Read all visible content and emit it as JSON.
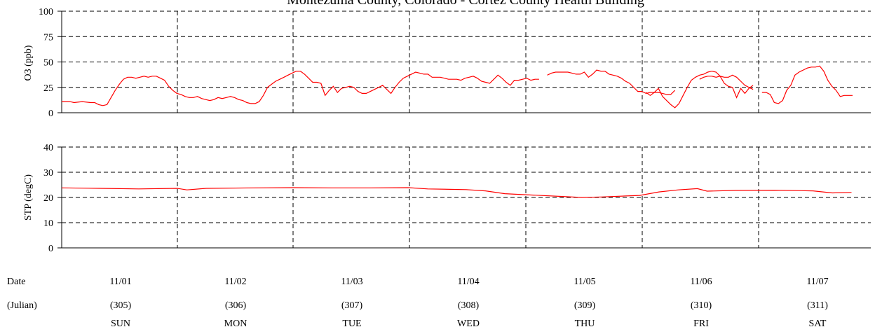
{
  "title": "Montezuma County, Colorado - Cortez County Health Building",
  "colors": {
    "series": "#ff0000",
    "axis": "#000000",
    "grid": "#000000"
  },
  "footer": {
    "row_labels": [
      "Date",
      "(Julian)"
    ],
    "days": [
      {
        "date": "11/01",
        "julian": "(305)",
        "weekday": "SUN"
      },
      {
        "date": "11/02",
        "julian": "(306)",
        "weekday": "MON"
      },
      {
        "date": "11/03",
        "julian": "(307)",
        "weekday": "TUE"
      },
      {
        "date": "11/04",
        "julian": "(308)",
        "weekday": "WED"
      },
      {
        "date": "11/05",
        "julian": "(309)",
        "weekday": "THU"
      },
      {
        "date": "11/06",
        "julian": "(310)",
        "weekday": "FRI"
      },
      {
        "date": "11/07",
        "julian": "(311)",
        "weekday": "SAT"
      }
    ]
  },
  "chart_data": [
    {
      "type": "line",
      "ylabel": "O3 (ppb)",
      "ylim": [
        0,
        100
      ],
      "yticks": [
        0,
        25,
        50,
        75,
        100
      ],
      "xlim": [
        0,
        168
      ],
      "grid": true,
      "x_unit": "hours from 11/01 00:00",
      "series": [
        {
          "segments": [
            [
              [
                0,
                11
              ],
              [
                2,
                11
              ],
              [
                3,
                10
              ],
              [
                5,
                11
              ],
              [
                7,
                10
              ],
              [
                8,
                10
              ],
              [
                9,
                8
              ],
              [
                10,
                7
              ],
              [
                11,
                8
              ],
              [
                12,
                15
              ],
              [
                13,
                22
              ],
              [
                14,
                28
              ],
              [
                15,
                33
              ],
              [
                16,
                35
              ],
              [
                17,
                35
              ],
              [
                18,
                34
              ],
              [
                19,
                35
              ],
              [
                20,
                36
              ],
              [
                21,
                35
              ],
              [
                22,
                36
              ],
              [
                23,
                36
              ],
              [
                24,
                34
              ],
              [
                25,
                32
              ],
              [
                26,
                26
              ],
              [
                27,
                22
              ],
              [
                28,
                19
              ],
              [
                29,
                18
              ],
              [
                30,
                16
              ],
              [
                31,
                15
              ],
              [
                32,
                15
              ],
              [
                33,
                16
              ],
              [
                34,
                14
              ],
              [
                35,
                13
              ],
              [
                36,
                12
              ],
              [
                37,
                13
              ],
              [
                38,
                15
              ],
              [
                39,
                14
              ],
              [
                40,
                15
              ],
              [
                41,
                16
              ],
              [
                42,
                15
              ],
              [
                43,
                13
              ],
              [
                44,
                12
              ],
              [
                45,
                10
              ],
              [
                46,
                9
              ],
              [
                47,
                9
              ],
              [
                48,
                11
              ],
              [
                49,
                17
              ],
              [
                50,
                25
              ],
              [
                51,
                28
              ],
              [
                52,
                31
              ],
              [
                53,
                33
              ],
              [
                54,
                35
              ],
              [
                55,
                37
              ],
              [
                56,
                39
              ],
              [
                57,
                41
              ],
              [
                58,
                41
              ],
              [
                59,
                38
              ],
              [
                60,
                34
              ],
              [
                61,
                30
              ],
              [
                62,
                30
              ],
              [
                63,
                29
              ],
              [
                64,
                17
              ],
              [
                65,
                22
              ],
              [
                66,
                26
              ],
              [
                67,
                20
              ],
              [
                68,
                24
              ],
              [
                69,
                25
              ],
              [
                70,
                26
              ],
              [
                71,
                25
              ],
              [
                72,
                21
              ],
              [
                73,
                19
              ],
              [
                74,
                19
              ],
              [
                75,
                21
              ],
              [
                76,
                23
              ],
              [
                77,
                25
              ],
              [
                78,
                27
              ],
              [
                79,
                23
              ],
              [
                80,
                19
              ],
              [
                81,
                25
              ],
              [
                82,
                30
              ],
              [
                83,
                34
              ],
              [
                84,
                36
              ],
              [
                85,
                38
              ],
              [
                86,
                40
              ],
              [
                87,
                39
              ],
              [
                88,
                38
              ],
              [
                89,
                38
              ],
              [
                90,
                35
              ],
              [
                91,
                35
              ],
              [
                92,
                35
              ],
              [
                93,
                34
              ],
              [
                94,
                33
              ],
              [
                95,
                33
              ],
              [
                96,
                33
              ],
              [
                97,
                32
              ],
              [
                98,
                34
              ],
              [
                99,
                35
              ],
              [
                100,
                36
              ],
              [
                101,
                34
              ],
              [
                102,
                31
              ],
              [
                103,
                30
              ],
              [
                104,
                29
              ],
              [
                105,
                33
              ],
              [
                106,
                37
              ],
              [
                107,
                34
              ],
              [
                108,
                30
              ],
              [
                109,
                27
              ],
              [
                110,
                32
              ],
              [
                111,
                32
              ],
              [
                112,
                33
              ],
              [
                113,
                34
              ],
              [
                114,
                32
              ],
              [
                115,
                33
              ],
              [
                116,
                33
              ]
            ],
            [
              [
                118,
                37
              ],
              [
                119,
                39
              ],
              [
                120,
                40
              ],
              [
                121,
                40
              ],
              [
                122,
                40
              ],
              [
                123,
                40
              ],
              [
                124,
                39
              ],
              [
                125,
                38
              ],
              [
                126,
                38
              ],
              [
                127,
                40
              ],
              [
                128,
                35
              ],
              [
                129,
                38
              ],
              [
                130,
                42
              ],
              [
                131,
                41
              ],
              [
                132,
                41
              ],
              [
                133,
                38
              ],
              [
                134,
                37
              ],
              [
                135,
                36
              ],
              [
                136,
                34
              ],
              [
                137,
                31
              ],
              [
                138,
                29
              ],
              [
                139,
                25
              ],
              [
                140,
                21
              ],
              [
                141,
                21
              ],
              [
                142,
                19
              ],
              [
                143,
                20
              ],
              [
                144,
                20
              ],
              [
                145,
                20
              ],
              [
                146,
                19
              ],
              [
                147,
                18
              ],
              [
                148,
                18
              ],
              [
                149,
                22
              ]
            ],
            [
              [
                155,
                33
              ],
              [
                156,
                35
              ],
              [
                157,
                36
              ],
              [
                158,
                36
              ],
              [
                159,
                35
              ],
              [
                160,
                36
              ],
              [
                161,
                35
              ],
              [
                162,
                35
              ],
              [
                163,
                37
              ],
              [
                164,
                35
              ],
              [
                165,
                31
              ],
              [
                166,
                27
              ],
              [
                167,
                25
              ],
              [
                168,
                23
              ]
            ]
          ],
          "note": "plot continues; full-week ozone trace drawn via scaled segments"
        }
      ]
    },
    {
      "type": "line",
      "ylabel": "STP (degC)",
      "ylim": [
        0,
        40
      ],
      "yticks": [
        0,
        10,
        20,
        30,
        40
      ],
      "xlim": [
        0,
        168
      ],
      "grid": true,
      "x_unit": "hours from 11/01 00:00",
      "series": [
        {
          "values": [
            [
              0,
              23.8
            ],
            [
              8,
              23.6
            ],
            [
              16,
              23.4
            ],
            [
              24,
              23.6
            ],
            [
              26,
              23.0
            ],
            [
              30,
              23.6
            ],
            [
              40,
              23.8
            ],
            [
              48,
              23.9
            ],
            [
              56,
              23.8
            ],
            [
              64,
              23.8
            ],
            [
              72,
              23.9
            ],
            [
              76,
              23.4
            ],
            [
              84,
              23.1
            ],
            [
              88,
              22.6
            ],
            [
              92,
              21.5
            ],
            [
              96,
              21.1
            ],
            [
              104,
              20.4
            ],
            [
              108,
              20.0
            ],
            [
              112,
              20.2
            ],
            [
              120,
              20.8
            ],
            [
              124,
              22.2
            ],
            [
              128,
              23.0
            ],
            [
              132,
              23.5
            ],
            [
              134,
              22.5
            ],
            [
              140,
              22.8
            ],
            [
              148,
              22.9
            ],
            [
              156,
              22.6
            ],
            [
              160,
              21.8
            ],
            [
              164,
              22.0
            ]
          ]
        }
      ]
    }
  ]
}
